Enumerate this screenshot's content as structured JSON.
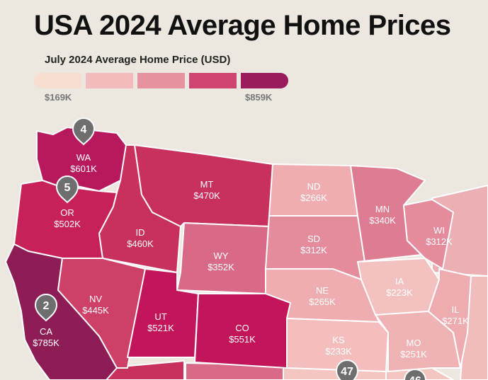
{
  "title": "USA 2024 Average Home Prices",
  "legend": {
    "title": "July 2024 Average Home Price (USD)",
    "min_label": "$169K",
    "max_label": "$859K",
    "colors": [
      "#f8ded0",
      "#f2bcbc",
      "#e6929f",
      "#cf4470",
      "#9a1c5c"
    ]
  },
  "states": {
    "WA": {
      "abbr": "WA",
      "price": "$601K",
      "color": "#b8195c"
    },
    "OR": {
      "abbr": "OR",
      "price": "$502K",
      "color": "#c82058"
    },
    "CA": {
      "abbr": "CA",
      "price": "$785K",
      "color": "#8e1c55"
    },
    "ID": {
      "abbr": "ID",
      "price": "$460K",
      "color": "#c8305e"
    },
    "NV": {
      "abbr": "NV",
      "price": "$445K",
      "color": "#ce4068"
    },
    "MT": {
      "abbr": "MT",
      "price": "$470K",
      "color": "#c8305e"
    },
    "WY": {
      "abbr": "WY",
      "price": "$352K",
      "color": "#d86a88"
    },
    "UT": {
      "abbr": "UT",
      "price": "$521K",
      "color": "#c2155a"
    },
    "CO": {
      "abbr": "CO",
      "price": "$551K",
      "color": "#c2155a"
    },
    "ND": {
      "abbr": "ND",
      "price": "$266K",
      "color": "#efadb1"
    },
    "SD": {
      "abbr": "SD",
      "price": "$312K",
      "color": "#e58c9c"
    },
    "NE": {
      "abbr": "NE",
      "price": "$265K",
      "color": "#efadb1"
    },
    "KS": {
      "abbr": "KS",
      "price": "$233K",
      "color": "#f3bebd"
    },
    "MN": {
      "abbr": "MN",
      "price": "$340K",
      "color": "#de7d92"
    },
    "IA": {
      "abbr": "IA",
      "price": "$223K",
      "color": "#f3c2c0"
    },
    "MO": {
      "abbr": "MO",
      "price": "$251K",
      "color": "#f0b3b5"
    },
    "WI": {
      "abbr": "WI",
      "price": "$312K",
      "color": "#e58c9c"
    },
    "IL": {
      "abbr": "IL",
      "price": "$271K",
      "color": "#eeabb0"
    }
  },
  "rank_pins": {
    "WA": "4",
    "OR": "5",
    "CA": "2",
    "KS_south": "47",
    "MO_south": "46"
  }
}
